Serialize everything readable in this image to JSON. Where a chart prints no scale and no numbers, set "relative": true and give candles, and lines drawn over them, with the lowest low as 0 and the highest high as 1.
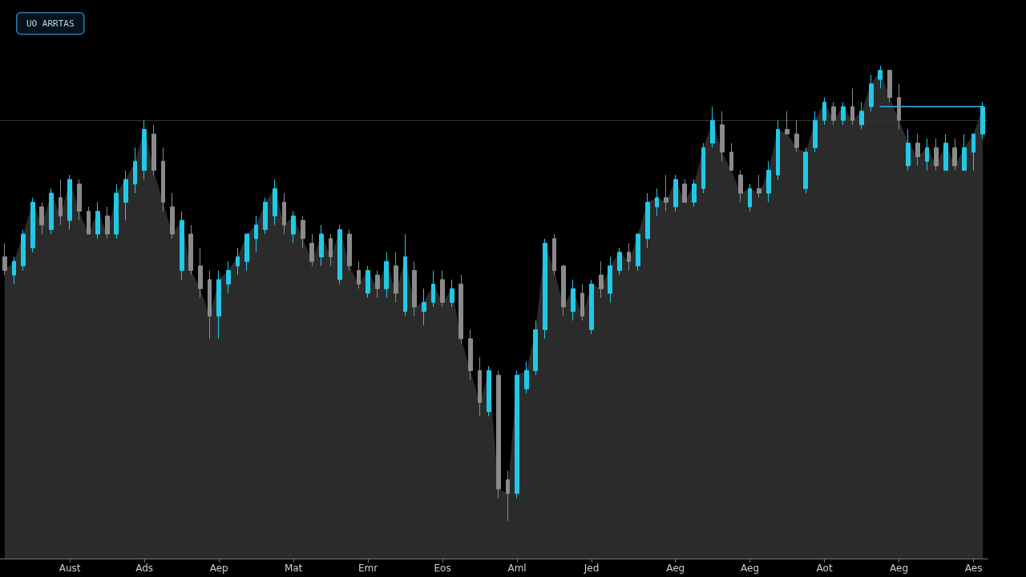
{
  "chart_data": {
    "type": "candlestick",
    "relative": true,
    "categories": [
      null,
      null,
      null,
      null,
      null,
      null,
      null,
      "Aust",
      null,
      null,
      null,
      null,
      null,
      null,
      null,
      "Ads",
      null,
      null,
      null,
      null,
      null,
      null,
      null,
      "Aep",
      null,
      null,
      null,
      null,
      null,
      null,
      null,
      "Mat",
      null,
      null,
      null,
      null,
      null,
      null,
      null,
      "Emr",
      null,
      null,
      null,
      null,
      null,
      null,
      null,
      "Eos",
      null,
      null,
      null,
      null,
      null,
      null,
      null,
      "Aml",
      null,
      null,
      null,
      null,
      null,
      null,
      null,
      "Jed",
      null,
      null,
      null,
      null,
      null,
      null,
      null,
      null,
      "Aeg",
      null,
      null,
      null,
      null,
      null,
      null,
      null,
      "Aeg",
      null,
      null,
      null,
      null,
      null,
      null,
      null,
      "Aot",
      null,
      null,
      null,
      null,
      null,
      null,
      null,
      "Aeg",
      null,
      null,
      null,
      null,
      null,
      null,
      null,
      "Aes",
      null
    ],
    "colors": [
      "#8a8a8a",
      "#22c8e6",
      "#22c8e6",
      "#22c8e6",
      "#8a8a8a",
      "#22c8e6",
      "#8a8a8a",
      "#22c8e6",
      "#8a8a8a",
      "#8a8a8a",
      "#22c8e6",
      "#8a8a8a",
      "#22c8e6",
      "#22c8e6",
      "#22c8e6",
      "#22c8e6",
      "#8a8a8a",
      "#8a8a8a",
      "#8a8a8a",
      "#22c8e6",
      "#8a8a8a",
      "#8a8a8a",
      "#8a8a8a",
      "#22c8e6",
      "#22c8e6",
      "#22c8e6",
      "#22c8e6",
      "#22c8e6",
      "#22c8e6",
      "#22c8e6",
      "#8a8a8a",
      "#22c8e6",
      "#8a8a8a",
      "#8a8a8a",
      "#22c8e6",
      "#8a8a8a",
      "#22c8e6",
      "#8a8a8a",
      "#8a8a8a",
      "#22c8e6",
      "#8a8a8a",
      "#22c8e6",
      "#8a8a8a",
      "#22c8e6",
      "#8a8a8a",
      "#22c8e6",
      "#22c8e6",
      "#8a8a8a",
      "#22c8e6",
      "#8a8a8a",
      "#8a8a8a",
      "#8a8a8a",
      "#22c8e6",
      "#8a8a8a",
      "#8a8a8a",
      "#22c8e6",
      "#22c8e6",
      "#22c8e6",
      "#22c8e6",
      "#8a8a8a",
      "#8a8a8a",
      "#22c8e6",
      "#8a8a8a",
      "#22c8e6",
      "#8a8a8a",
      "#22c8e6",
      "#22c8e6",
      "#8a8a8a",
      "#22c8e6",
      "#22c8e6",
      "#22c8e6",
      "#8a8a8a",
      "#22c8e6",
      "#8a8a8a",
      "#22c8e6",
      "#22c8e6",
      "#22c8e6",
      "#8a8a8a",
      "#8a8a8a",
      "#8a8a8a",
      "#22c8e6",
      "#8a8a8a",
      "#22c8e6",
      "#22c8e6",
      "#8a8a8a",
      "#8a8a8a",
      "#22c8e6",
      "#22c8e6",
      "#22c8e6",
      "#8a8a8a",
      "#22c8e6",
      "#8a8a8a",
      "#22c8e6",
      "#22c8e6",
      "#22c8e6",
      "#8a8a8a",
      "#8a8a8a",
      "#22c8e6",
      "#8a8a8a",
      "#22c8e6",
      "#8a8a8a",
      "#22c8e6",
      "#8a8a8a",
      "#22c8e6",
      "#22c8e6",
      "#22c8e6"
    ],
    "ohlc": [
      [
        0.58,
        0.61,
        0.54,
        0.55
      ],
      [
        0.54,
        0.58,
        0.52,
        0.57
      ],
      [
        0.56,
        0.64,
        0.55,
        0.63
      ],
      [
        0.6,
        0.71,
        0.59,
        0.7
      ],
      [
        0.69,
        0.7,
        0.63,
        0.65
      ],
      [
        0.64,
        0.73,
        0.63,
        0.72
      ],
      [
        0.71,
        0.75,
        0.65,
        0.67
      ],
      [
        0.66,
        0.76,
        0.64,
        0.75
      ],
      [
        0.74,
        0.75,
        0.66,
        0.68
      ],
      [
        0.68,
        0.69,
        0.63,
        0.63
      ],
      [
        0.63,
        0.7,
        0.62,
        0.68
      ],
      [
        0.67,
        0.69,
        0.62,
        0.63
      ],
      [
        0.63,
        0.74,
        0.62,
        0.72
      ],
      [
        0.7,
        0.77,
        0.66,
        0.75
      ],
      [
        0.74,
        0.82,
        0.72,
        0.79
      ],
      [
        0.77,
        0.88,
        0.75,
        0.86
      ],
      [
        0.85,
        0.87,
        0.76,
        0.77
      ],
      [
        0.79,
        0.82,
        0.68,
        0.7
      ],
      [
        0.69,
        0.72,
        0.62,
        0.63
      ],
      [
        0.55,
        0.68,
        0.53,
        0.66
      ],
      [
        0.63,
        0.65,
        0.54,
        0.55
      ],
      [
        0.56,
        0.6,
        0.49,
        0.51
      ],
      [
        0.53,
        0.55,
        0.4,
        0.45
      ],
      [
        0.45,
        0.55,
        0.4,
        0.53
      ],
      [
        0.52,
        0.57,
        0.5,
        0.55
      ],
      [
        0.56,
        0.6,
        0.54,
        0.58
      ],
      [
        0.57,
        0.63,
        0.55,
        0.63
      ],
      [
        0.62,
        0.67,
        0.59,
        0.65
      ],
      [
        0.64,
        0.71,
        0.63,
        0.7
      ],
      [
        0.67,
        0.75,
        0.65,
        0.73
      ],
      [
        0.7,
        0.72,
        0.63,
        0.65
      ],
      [
        0.63,
        0.68,
        0.61,
        0.67
      ],
      [
        0.66,
        0.67,
        0.6,
        0.62
      ],
      [
        0.61,
        0.63,
        0.56,
        0.57
      ],
      [
        0.58,
        0.65,
        0.56,
        0.63
      ],
      [
        0.62,
        0.63,
        0.56,
        0.58
      ],
      [
        0.53,
        0.65,
        0.52,
        0.64
      ],
      [
        0.63,
        0.64,
        0.55,
        0.56
      ],
      [
        0.55,
        0.57,
        0.51,
        0.52
      ],
      [
        0.5,
        0.56,
        0.49,
        0.55
      ],
      [
        0.54,
        0.55,
        0.49,
        0.51
      ],
      [
        0.51,
        0.59,
        0.49,
        0.57
      ],
      [
        0.56,
        0.59,
        0.48,
        0.5
      ],
      [
        0.46,
        0.63,
        0.45,
        0.58
      ],
      [
        0.55,
        0.57,
        0.45,
        0.47
      ],
      [
        0.46,
        0.51,
        0.43,
        0.48
      ],
      [
        0.48,
        0.55,
        0.47,
        0.52
      ],
      [
        0.53,
        0.55,
        0.47,
        0.48
      ],
      [
        0.48,
        0.53,
        0.47,
        0.51
      ],
      [
        0.52,
        0.54,
        0.39,
        0.4
      ],
      [
        0.4,
        0.42,
        0.31,
        0.33
      ],
      [
        0.33,
        0.36,
        0.23,
        0.26
      ],
      [
        0.24,
        0.34,
        0.23,
        0.33
      ],
      [
        0.32,
        0.33,
        0.05,
        0.07
      ],
      [
        0.09,
        0.11,
        0.0,
        0.06
      ],
      [
        0.06,
        0.33,
        0.05,
        0.32
      ],
      [
        0.29,
        0.35,
        0.28,
        0.33
      ],
      [
        0.33,
        0.44,
        0.32,
        0.42
      ],
      [
        0.42,
        0.62,
        0.4,
        0.61
      ],
      [
        0.62,
        0.63,
        0.54,
        0.55
      ],
      [
        0.56,
        0.56,
        0.45,
        0.47
      ],
      [
        0.46,
        0.53,
        0.44,
        0.51
      ],
      [
        0.5,
        0.52,
        0.44,
        0.45
      ],
      [
        0.42,
        0.53,
        0.41,
        0.52
      ],
      [
        0.54,
        0.57,
        0.49,
        0.51
      ],
      [
        0.5,
        0.58,
        0.48,
        0.56
      ],
      [
        0.55,
        0.6,
        0.54,
        0.59
      ],
      [
        0.59,
        0.61,
        0.55,
        0.57
      ],
      [
        0.56,
        0.63,
        0.55,
        0.63
      ],
      [
        0.62,
        0.72,
        0.6,
        0.7
      ],
      [
        0.69,
        0.73,
        0.67,
        0.71
      ],
      [
        0.71,
        0.76,
        0.68,
        0.7
      ],
      [
        0.69,
        0.76,
        0.68,
        0.75
      ],
      [
        0.74,
        0.75,
        0.7,
        0.7
      ],
      [
        0.7,
        0.75,
        0.69,
        0.74
      ],
      [
        0.73,
        0.83,
        0.72,
        0.82
      ],
      [
        0.83,
        0.91,
        0.82,
        0.88
      ],
      [
        0.87,
        0.9,
        0.79,
        0.81
      ],
      [
        0.81,
        0.83,
        0.77,
        0.77
      ],
      [
        0.76,
        0.77,
        0.7,
        0.72
      ],
      [
        0.69,
        0.74,
        0.68,
        0.73
      ],
      [
        0.73,
        0.76,
        0.71,
        0.72
      ],
      [
        0.72,
        0.79,
        0.7,
        0.77
      ],
      [
        0.76,
        0.88,
        0.75,
        0.86
      ],
      [
        0.86,
        0.9,
        0.85,
        0.85
      ],
      [
        0.85,
        0.88,
        0.81,
        0.82
      ],
      [
        0.73,
        0.82,
        0.72,
        0.81
      ],
      [
        0.82,
        0.9,
        0.81,
        0.88
      ],
      [
        0.88,
        0.93,
        0.87,
        0.92
      ],
      [
        0.91,
        0.92,
        0.87,
        0.88
      ],
      [
        0.88,
        0.92,
        0.87,
        0.91
      ],
      [
        0.91,
        0.95,
        0.87,
        0.88
      ],
      [
        0.87,
        0.92,
        0.86,
        0.9
      ],
      [
        0.91,
        0.98,
        0.9,
        0.96
      ],
      [
        0.97,
        1.0,
        0.95,
        0.99
      ],
      [
        0.99,
        0.99,
        0.92,
        0.93
      ],
      [
        0.93,
        0.96,
        0.86,
        0.88
      ],
      [
        0.78,
        0.86,
        0.77,
        0.83
      ],
      [
        0.83,
        0.85,
        0.78,
        0.8
      ],
      [
        0.79,
        0.84,
        0.77,
        0.82
      ],
      [
        0.82,
        0.84,
        0.77,
        0.78
      ],
      [
        0.77,
        0.85,
        0.77,
        0.83
      ],
      [
        0.82,
        0.84,
        0.77,
        0.78
      ],
      [
        0.77,
        0.85,
        0.77,
        0.82
      ],
      [
        0.81,
        0.85,
        0.77,
        0.85
      ],
      [
        0.85,
        0.92,
        0.84,
        0.91
      ]
    ],
    "series": [
      {
        "type": "area",
        "color": "#2b2b2b",
        "values": [
          0.55,
          0.57,
          0.63,
          0.7,
          0.65,
          0.72,
          0.67,
          0.75,
          0.68,
          0.63,
          0.68,
          0.63,
          0.72,
          0.75,
          0.79,
          0.86,
          0.77,
          0.7,
          0.63,
          0.66,
          0.55,
          0.51,
          0.45,
          0.53,
          0.55,
          0.58,
          0.63,
          0.65,
          0.7,
          0.73,
          0.65,
          0.67,
          0.62,
          0.57,
          0.63,
          0.58,
          0.64,
          0.56,
          0.52,
          0.55,
          0.51,
          0.57,
          0.5,
          0.58,
          0.47,
          0.48,
          0.52,
          0.48,
          0.51,
          0.4,
          0.33,
          0.26,
          0.33,
          0.07,
          0.06,
          0.32,
          0.33,
          0.42,
          0.61,
          0.55,
          0.47,
          0.51,
          0.45,
          0.52,
          0.51,
          0.56,
          0.59,
          0.57,
          0.63,
          0.7,
          0.71,
          0.7,
          0.75,
          0.7,
          0.74,
          0.82,
          0.88,
          0.81,
          0.77,
          0.72,
          0.73,
          0.72,
          0.77,
          0.86,
          0.85,
          0.82,
          0.81,
          0.88,
          0.92,
          0.88,
          0.91,
          0.88,
          0.9,
          0.96,
          0.99,
          0.93,
          0.88,
          0.83,
          0.8,
          0.82,
          0.78,
          0.83,
          0.78,
          0.82,
          0.85,
          0.91
        ]
      },
      {
        "type": "line",
        "color": "#2a8fc0",
        "values": [
          null,
          null,
          null,
          null,
          null,
          null,
          null,
          null,
          null,
          null,
          null,
          null,
          null,
          null,
          null,
          null,
          null,
          null,
          null,
          null,
          null,
          null,
          null,
          null,
          null,
          null,
          null,
          null,
          null,
          null,
          null,
          null,
          null,
          null,
          null,
          null,
          null,
          null,
          null,
          null,
          null,
          null,
          null,
          null,
          null,
          null,
          null,
          null,
          null,
          null,
          null,
          null,
          null,
          null,
          null,
          null,
          null,
          null,
          null,
          null,
          null,
          null,
          null,
          null,
          null,
          null,
          null,
          null,
          null,
          null,
          null,
          null,
          null,
          null,
          null,
          null,
          null,
          null,
          null,
          null,
          null,
          null,
          null,
          null,
          null,
          null,
          null,
          null,
          null,
          null,
          null,
          null,
          null,
          null,
          0.91,
          0.91,
          0.91,
          0.91,
          0.91,
          0.91,
          0.91,
          0.91,
          0.91,
          0.91,
          0.91,
          0.91
        ]
      }
    ],
    "ref_lines": [
      {
        "axis": "y",
        "value": 0.88,
        "color": "#333333"
      }
    ],
    "annotations": [
      "UO ARRTAS"
    ]
  }
}
